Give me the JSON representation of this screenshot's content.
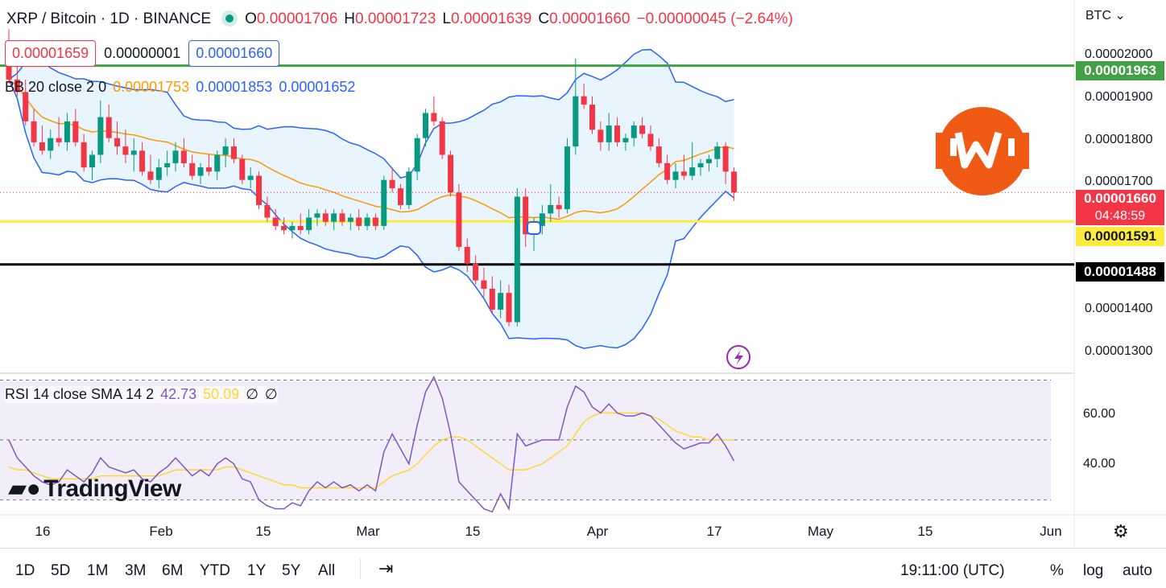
{
  "header": {
    "symbol": "XRP / Bitcoin · 1D · BINANCE",
    "ohlc": {
      "o_label": "O",
      "o_value": "0.00001706",
      "h_label": "H",
      "h_value": "0.00001723",
      "l_label": "L",
      "l_value": "0.00001639",
      "c_label": "C",
      "c_value": "0.00001660",
      "change": "−0.00000045 (−2.64%)"
    },
    "currency": "BTC"
  },
  "order": {
    "sell": "0.00001659",
    "spread": "0.00000001",
    "buy": "0.00001660"
  },
  "bb_legend": {
    "name": "BB 20 close 2 0",
    "basis": "0.00001753",
    "upper": "0.00001853",
    "lower": "0.00001652"
  },
  "rsi_legend": {
    "name": "RSI 14 close SMA 14 2",
    "rsi": "42.73",
    "sma": "50.09",
    "extra1": "∅",
    "extra2": "∅"
  },
  "price_tags": {
    "green_line": "0.00001963",
    "last_price": "0.00001660",
    "countdown": "04:48:59",
    "yellow_line": "0.00001591",
    "black_line": "0.00001488"
  },
  "price_axis": [
    "0.00002000",
    "0.00001900",
    "0.00001800",
    "0.00001700",
    "0.00001400",
    "0.00001300"
  ],
  "rsi_axis": [
    "60.00",
    "40.00"
  ],
  "x_axis": [
    "16",
    "Feb",
    "15",
    "Mar",
    "15",
    "Apr",
    "17",
    "May",
    "15",
    "Jun"
  ],
  "bottom_bar": {
    "timeframes": [
      "1D",
      "5D",
      "1M",
      "3M",
      "6M",
      "YTD",
      "1Y",
      "5Y",
      "All"
    ],
    "time": "19:11:00 (UTC)",
    "percent": "%",
    "log": "log",
    "auto": "auto"
  },
  "branding": "TradingView",
  "colors": {
    "up": "#089981",
    "down": "#f23645",
    "bb_band": "#2962ff",
    "bb_basis": "#ff9800",
    "rsi": "#7e57c2",
    "rsi_sma": "#fdd835",
    "green_line": "#43a047",
    "yellow_line": "#ffeb3b",
    "black_line": "#000000",
    "logo": "#f05a14"
  },
  "chart_data": {
    "type": "candlestick",
    "price_range": [
      1.23e-05,
      2.12e-05
    ],
    "horizontal_lines": [
      1.963e-05,
      1.591e-05,
      1.488e-05
    ],
    "last_price": 1.66e-05,
    "candles": [
      [
        1.97e-05,
        2.05e-05,
        1.92e-05,
        1.93e-05
      ],
      [
        1.93e-05,
        1.98e-05,
        1.89e-05,
        1.9e-05
      ],
      [
        1.9e-05,
        1.93e-05,
        1.82e-05,
        1.83e-05
      ],
      [
        1.83e-05,
        1.86e-05,
        1.77e-05,
        1.78e-05
      ],
      [
        1.78e-05,
        1.82e-05,
        1.75e-05,
        1.76e-05
      ],
      [
        1.76e-05,
        1.81e-05,
        1.74e-05,
        1.79e-05
      ],
      [
        1.79e-05,
        1.84e-05,
        1.77e-05,
        1.78e-05
      ],
      [
        1.78e-05,
        1.85e-05,
        1.76e-05,
        1.83e-05
      ],
      [
        1.83e-05,
        1.86e-05,
        1.77e-05,
        1.78e-05
      ],
      [
        1.78e-05,
        1.8e-05,
        1.71e-05,
        1.72e-05
      ],
      [
        1.72e-05,
        1.76e-05,
        1.69e-05,
        1.75e-05
      ],
      [
        1.75e-05,
        1.88e-05,
        1.73e-05,
        1.84e-05
      ],
      [
        1.84e-05,
        1.87e-05,
        1.78e-05,
        1.79e-05
      ],
      [
        1.79e-05,
        1.83e-05,
        1.75e-05,
        1.77e-05
      ],
      [
        1.77e-05,
        1.81e-05,
        1.73e-05,
        1.75e-05
      ],
      [
        1.75e-05,
        1.79e-05,
        1.71e-05,
        1.76e-05
      ],
      [
        1.76e-05,
        1.78e-05,
        1.7e-05,
        1.71e-05
      ],
      [
        1.71e-05,
        1.75e-05,
        1.68e-05,
        1.69e-05
      ],
      [
        1.69e-05,
        1.74e-05,
        1.67e-05,
        1.72e-05
      ],
      [
        1.72e-05,
        1.76e-05,
        1.7e-05,
        1.73e-05
      ],
      [
        1.73e-05,
        1.78e-05,
        1.71e-05,
        1.76e-05
      ],
      [
        1.76e-05,
        1.79e-05,
        1.72e-05,
        1.73e-05
      ],
      [
        1.73e-05,
        1.75e-05,
        1.69e-05,
        1.7e-05
      ],
      [
        1.7e-05,
        1.73e-05,
        1.68e-05,
        1.72e-05
      ],
      [
        1.72e-05,
        1.75e-05,
        1.7e-05,
        1.71e-05
      ],
      [
        1.71e-05,
        1.76e-05,
        1.69e-05,
        1.75e-05
      ],
      [
        1.75e-05,
        1.79e-05,
        1.72e-05,
        1.77e-05
      ],
      [
        1.77e-05,
        1.79e-05,
        1.73e-05,
        1.74e-05
      ],
      [
        1.74e-05,
        1.75e-05,
        1.68e-05,
        1.69e-05
      ],
      [
        1.69e-05,
        1.72e-05,
        1.67e-05,
        1.7e-05
      ],
      [
        1.7e-05,
        1.71e-05,
        1.62e-05,
        1.63e-05
      ],
      [
        1.63e-05,
        1.65e-05,
        1.59e-05,
        1.6e-05
      ],
      [
        1.6e-05,
        1.62e-05,
        1.57e-05,
        1.58e-05
      ],
      [
        1.58e-05,
        1.6e-05,
        1.56e-05,
        1.57e-05
      ],
      [
        1.57e-05,
        1.59e-05,
        1.55e-05,
        1.58e-05
      ],
      [
        1.58e-05,
        1.61e-05,
        1.56e-05,
        1.57e-05
      ],
      [
        1.57e-05,
        1.62e-05,
        1.56e-05,
        1.6e-05
      ],
      [
        1.6e-05,
        1.62e-05,
        1.58e-05,
        1.61e-05
      ],
      [
        1.61e-05,
        1.62e-05,
        1.58e-05,
        1.59e-05
      ],
      [
        1.59e-05,
        1.62e-05,
        1.57e-05,
        1.61e-05
      ],
      [
        1.61e-05,
        1.62e-05,
        1.58e-05,
        1.59e-05
      ],
      [
        1.59e-05,
        1.61e-05,
        1.57e-05,
        1.6e-05
      ],
      [
        1.6e-05,
        1.62e-05,
        1.57e-05,
        1.58e-05
      ],
      [
        1.58e-05,
        1.61e-05,
        1.57e-05,
        1.6e-05
      ],
      [
        1.6e-05,
        1.61e-05,
        1.57e-05,
        1.58e-05
      ],
      [
        1.58e-05,
        1.7e-05,
        1.57e-05,
        1.69e-05
      ],
      [
        1.69e-05,
        1.72e-05,
        1.66e-05,
        1.67e-05
      ],
      [
        1.67e-05,
        1.68e-05,
        1.62e-05,
        1.63e-05
      ],
      [
        1.63e-05,
        1.72e-05,
        1.62e-05,
        1.71e-05
      ],
      [
        1.71e-05,
        1.8e-05,
        1.69e-05,
        1.79e-05
      ],
      [
        1.79e-05,
        1.86e-05,
        1.77e-05,
        1.85e-05
      ],
      [
        1.85e-05,
        1.89e-05,
        1.82e-05,
        1.83e-05
      ],
      [
        1.83e-05,
        1.84e-05,
        1.74e-05,
        1.75e-05
      ],
      [
        1.75e-05,
        1.76e-05,
        1.65e-05,
        1.66e-05
      ],
      [
        1.66e-05,
        1.68e-05,
        1.52e-05,
        1.53e-05
      ],
      [
        1.53e-05,
        1.55e-05,
        1.47e-05,
        1.49e-05
      ],
      [
        1.49e-05,
        1.51e-05,
        1.44e-05,
        1.45e-05
      ],
      [
        1.45e-05,
        1.48e-05,
        1.41e-05,
        1.43e-05
      ],
      [
        1.43e-05,
        1.46e-05,
        1.37e-05,
        1.38e-05
      ],
      [
        1.38e-05,
        1.45e-05,
        1.36e-05,
        1.42e-05
      ],
      [
        1.42e-05,
        1.44e-05,
        1.34e-05,
        1.35e-05
      ],
      [
        1.35e-05,
        1.67e-05,
        1.34e-05,
        1.65e-05
      ],
      [
        1.65e-05,
        1.67e-05,
        1.53e-05,
        1.56e-05
      ],
      [
        1.56e-05,
        1.6e-05,
        1.52e-05,
        1.58e-05
      ],
      [
        1.58e-05,
        1.63e-05,
        1.56e-05,
        1.61e-05
      ],
      [
        1.61e-05,
        1.68e-05,
        1.59e-05,
        1.63e-05
      ],
      [
        1.63e-05,
        1.65e-05,
        1.6e-05,
        1.62e-05
      ],
      [
        1.62e-05,
        1.79e-05,
        1.61e-05,
        1.77e-05
      ],
      [
        1.77e-05,
        1.98e-05,
        1.75e-05,
        1.89e-05
      ],
      [
        1.89e-05,
        1.92e-05,
        1.86e-05,
        1.87e-05
      ],
      [
        1.87e-05,
        1.89e-05,
        1.8e-05,
        1.81e-05
      ],
      [
        1.81e-05,
        1.83e-05,
        1.76e-05,
        1.78e-05
      ],
      [
        1.78e-05,
        1.85e-05,
        1.76e-05,
        1.82e-05
      ],
      [
        1.82e-05,
        1.84e-05,
        1.77e-05,
        1.78e-05
      ],
      [
        1.78e-05,
        1.8e-05,
        1.76e-05,
        1.79e-05
      ],
      [
        1.79e-05,
        1.83e-05,
        1.77e-05,
        1.82e-05
      ],
      [
        1.82e-05,
        1.84e-05,
        1.79e-05,
        1.8e-05
      ],
      [
        1.8e-05,
        1.82e-05,
        1.76e-05,
        1.77e-05
      ],
      [
        1.77e-05,
        1.79e-05,
        1.72e-05,
        1.73e-05
      ],
      [
        1.73e-05,
        1.75e-05,
        1.68e-05,
        1.69e-05
      ],
      [
        1.69e-05,
        1.73e-05,
        1.67e-05,
        1.71e-05
      ],
      [
        1.71e-05,
        1.75e-05,
        1.69e-05,
        1.7e-05
      ],
      [
        1.7e-05,
        1.78e-05,
        1.69e-05,
        1.72e-05
      ],
      [
        1.72e-05,
        1.74e-05,
        1.7e-05,
        1.73e-05
      ],
      [
        1.73e-05,
        1.75e-05,
        1.71e-05,
        1.74e-05
      ],
      [
        1.74e-05,
        1.78e-05,
        1.72e-05,
        1.77e-05
      ],
      [
        1.77e-05,
        1.78e-05,
        1.68e-05,
        1.71e-05
      ],
      [
        1.71e-05,
        1.72e-05,
        1.64e-05,
        1.66e-05
      ]
    ],
    "rsi_range": [
      25,
      72
    ],
    "rsi_levels": [
      70,
      50,
      30
    ],
    "rsi": [
      50,
      44,
      41,
      38,
      36,
      35,
      36,
      40,
      38,
      36,
      39,
      44,
      41,
      40,
      39,
      40,
      37,
      36,
      39,
      41,
      44,
      41,
      38,
      40,
      38,
      42,
      44,
      42,
      37,
      36,
      30,
      28,
      27,
      27,
      29,
      28,
      33,
      36,
      34,
      36,
      34,
      35,
      33,
      35,
      33,
      46,
      52,
      47,
      42,
      55,
      66,
      71,
      64,
      52,
      36,
      33,
      30,
      27,
      26,
      32,
      27,
      52,
      48,
      49,
      50,
      50,
      50,
      61,
      68,
      66,
      61,
      59,
      62,
      59,
      58,
      58,
      59,
      58,
      55,
      52,
      49,
      47,
      48,
      49,
      49,
      52,
      48,
      43
    ],
    "rsi_sma": [
      41,
      40,
      40,
      39,
      38,
      37,
      37,
      37,
      37,
      37,
      37,
      38,
      38,
      38,
      38,
      38,
      38,
      38,
      38,
      39,
      40,
      40,
      40,
      40,
      40,
      40,
      41,
      41,
      40,
      39,
      38,
      37,
      36,
      35,
      35,
      34,
      34,
      34,
      34,
      34,
      34,
      34,
      34,
      34,
      34,
      36,
      38,
      39,
      40,
      42,
      45,
      48,
      50,
      51,
      51,
      50,
      48,
      46,
      44,
      42,
      40,
      40,
      40,
      41,
      42,
      44,
      46,
      48,
      52,
      56,
      58,
      59,
      59,
      59,
      59,
      59,
      59,
      58,
      57,
      55,
      53,
      52,
      51,
      51,
      50,
      50,
      50,
      50
    ]
  }
}
